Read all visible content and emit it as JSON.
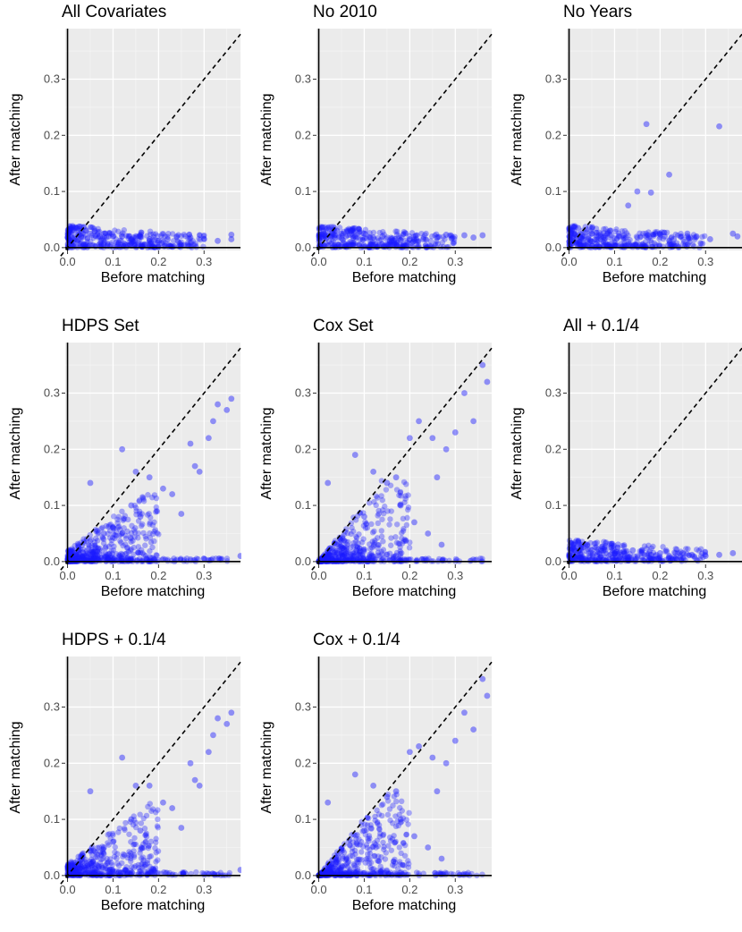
{
  "chart_data": [
    {
      "type": "scatter",
      "title": "All Covariates",
      "xlabel": "Before matching",
      "ylabel": "After matching",
      "xlim": [
        -0.005,
        0.38
      ],
      "ylim": [
        -0.005,
        0.39
      ],
      "xticks": [
        "0.0",
        "0.1",
        "0.2",
        "0.3"
      ],
      "yticks": [
        "0.0",
        "0.1",
        "0.2",
        "0.3"
      ],
      "reference_line": "y = x (dashed)",
      "grid": true,
      "point_color": "#1a1aff",
      "x": [
        0.01,
        0.02,
        0.03,
        0.04,
        0.05,
        0.06,
        0.07,
        0.08,
        0.09,
        0.1,
        0.12,
        0.14,
        0.16,
        0.18,
        0.2,
        0.22,
        0.24,
        0.27,
        0.3,
        0.33,
        0.36,
        0.36
      ],
      "y": [
        0.03,
        0.035,
        0.02,
        0.03,
        0.025,
        0.03,
        0.02,
        0.025,
        0.02,
        0.02,
        0.02,
        0.015,
        0.02,
        0.015,
        0.012,
        0.015,
        0.02,
        0.018,
        0.015,
        0.012,
        0.023,
        0.015
      ]
    },
    {
      "type": "scatter",
      "title": "No 2010",
      "xlabel": "Before matching",
      "ylabel": "After matching",
      "xlim": [
        -0.005,
        0.38
      ],
      "ylim": [
        -0.005,
        0.39
      ],
      "xticks": [
        "0.0",
        "0.1",
        "0.2",
        "0.3"
      ],
      "yticks": [
        "0.0",
        "0.1",
        "0.2",
        "0.3"
      ],
      "reference_line": "y = x (dashed)",
      "grid": true,
      "point_color": "#1a1aff",
      "x": [
        0.01,
        0.02,
        0.03,
        0.04,
        0.05,
        0.06,
        0.07,
        0.08,
        0.1,
        0.12,
        0.14,
        0.16,
        0.18,
        0.2,
        0.23,
        0.26,
        0.28,
        0.32,
        0.34,
        0.36
      ],
      "y": [
        0.03,
        0.035,
        0.025,
        0.03,
        0.025,
        0.02,
        0.03,
        0.02,
        0.025,
        0.018,
        0.02,
        0.015,
        0.013,
        0.015,
        0.015,
        0.018,
        0.023,
        0.022,
        0.018,
        0.022
      ]
    },
    {
      "type": "scatter",
      "title": "No Years",
      "xlabel": "Before matching",
      "ylabel": "After matching",
      "xlim": [
        -0.005,
        0.38
      ],
      "ylim": [
        -0.005,
        0.39
      ],
      "xticks": [
        "0.0",
        "0.1",
        "0.2",
        "0.3"
      ],
      "yticks": [
        "0.0",
        "0.1",
        "0.2",
        "0.3"
      ],
      "reference_line": "y = x (dashed)",
      "grid": true,
      "point_color": "#1a1aff",
      "x": [
        0.01,
        0.02,
        0.03,
        0.05,
        0.07,
        0.09,
        0.11,
        0.13,
        0.17,
        0.22,
        0.33,
        0.15,
        0.18,
        0.21,
        0.23,
        0.26,
        0.28,
        0.31,
        0.36,
        0.37
      ],
      "y": [
        0.03,
        0.035,
        0.02,
        0.025,
        0.02,
        0.03,
        0.02,
        0.075,
        0.22,
        0.13,
        0.216,
        0.1,
        0.098,
        0.02,
        0.015,
        0.025,
        0.02,
        0.015,
        0.025,
        0.02
      ]
    },
    {
      "type": "scatter",
      "title": "HDPS Set",
      "xlabel": "Before matching",
      "ylabel": "After matching",
      "xlim": [
        -0.005,
        0.38
      ],
      "ylim": [
        -0.005,
        0.39
      ],
      "xticks": [
        "0.0",
        "0.1",
        "0.2",
        "0.3"
      ],
      "yticks": [
        "0.0",
        "0.1",
        "0.2",
        "0.3"
      ],
      "reference_line": "y = x (dashed)",
      "grid": true,
      "point_color": "#1a1aff",
      "x": [
        0.05,
        0.12,
        0.15,
        0.18,
        0.21,
        0.23,
        0.27,
        0.28,
        0.29,
        0.31,
        0.32,
        0.33,
        0.35,
        0.36,
        0.38,
        0.14,
        0.16,
        0.25,
        0.1,
        0.08
      ],
      "y": [
        0.14,
        0.2,
        0.16,
        0.15,
        0.13,
        0.12,
        0.21,
        0.17,
        0.16,
        0.22,
        0.25,
        0.28,
        0.27,
        0.29,
        0.01,
        0.1,
        0.08,
        0.085,
        0.06,
        0.05
      ]
    },
    {
      "type": "scatter",
      "title": "Cox Set",
      "xlabel": "Before matching",
      "ylabel": "After matching",
      "xlim": [
        -0.005,
        0.38
      ],
      "ylim": [
        -0.005,
        0.39
      ],
      "xticks": [
        "0.0",
        "0.1",
        "0.2",
        "0.3"
      ],
      "yticks": [
        "0.0",
        "0.1",
        "0.2",
        "0.3"
      ],
      "reference_line": "y = x (dashed)",
      "grid": true,
      "point_color": "#1a1aff",
      "x": [
        0.08,
        0.12,
        0.15,
        0.17,
        0.2,
        0.22,
        0.25,
        0.26,
        0.28,
        0.3,
        0.32,
        0.34,
        0.36,
        0.37,
        0.18,
        0.21,
        0.24,
        0.27,
        0.02,
        0.1
      ],
      "y": [
        0.19,
        0.16,
        0.14,
        0.15,
        0.22,
        0.25,
        0.22,
        0.15,
        0.2,
        0.23,
        0.3,
        0.25,
        0.35,
        0.32,
        0.1,
        0.07,
        0.05,
        0.03,
        0.14,
        0.08
      ]
    },
    {
      "type": "scatter",
      "title": "All + 0.1/4",
      "xlabel": "Before matching",
      "ylabel": "After matching",
      "xlim": [
        -0.005,
        0.38
      ],
      "ylim": [
        -0.005,
        0.39
      ],
      "xticks": [
        "0.0",
        "0.1",
        "0.2",
        "0.3"
      ],
      "yticks": [
        "0.0",
        "0.1",
        "0.2",
        "0.3"
      ],
      "reference_line": "y = x (dashed)",
      "grid": true,
      "point_color": "#1a1aff",
      "x": [
        0.01,
        0.02,
        0.03,
        0.04,
        0.05,
        0.06,
        0.07,
        0.08,
        0.1,
        0.12,
        0.14,
        0.16,
        0.18,
        0.2,
        0.22,
        0.25,
        0.27,
        0.3,
        0.33,
        0.36
      ],
      "y": [
        0.03,
        0.035,
        0.025,
        0.03,
        0.02,
        0.025,
        0.02,
        0.02,
        0.015,
        0.018,
        0.02,
        0.015,
        0.012,
        0.015,
        0.01,
        0.015,
        0.012,
        0.01,
        0.012,
        0.015
      ]
    },
    {
      "type": "scatter",
      "title": "HDPS + 0.1/4",
      "xlabel": "Before matching",
      "ylabel": "After matching",
      "xlim": [
        -0.005,
        0.38
      ],
      "ylim": [
        -0.005,
        0.39
      ],
      "xticks": [
        "0.0",
        "0.1",
        "0.2",
        "0.3"
      ],
      "yticks": [
        "0.0",
        "0.1",
        "0.2",
        "0.3"
      ],
      "reference_line": "y = x (dashed)",
      "grid": true,
      "point_color": "#1a1aff",
      "x": [
        0.05,
        0.12,
        0.15,
        0.18,
        0.21,
        0.23,
        0.27,
        0.28,
        0.29,
        0.31,
        0.32,
        0.33,
        0.35,
        0.36,
        0.38,
        0.14,
        0.16,
        0.25,
        0.1,
        0.08
      ],
      "y": [
        0.15,
        0.21,
        0.16,
        0.16,
        0.13,
        0.12,
        0.2,
        0.17,
        0.16,
        0.22,
        0.25,
        0.28,
        0.27,
        0.29,
        0.01,
        0.1,
        0.08,
        0.085,
        0.06,
        0.05
      ]
    },
    {
      "type": "scatter",
      "title": "Cox + 0.1/4",
      "xlabel": "Before matching",
      "ylabel": "After matching",
      "xlim": [
        -0.005,
        0.38
      ],
      "ylim": [
        -0.005,
        0.39
      ],
      "xticks": [
        "0.0",
        "0.1",
        "0.2",
        "0.3"
      ],
      "yticks": [
        "0.0",
        "0.1",
        "0.2",
        "0.3"
      ],
      "reference_line": "y = x (dashed)",
      "grid": true,
      "point_color": "#1a1aff",
      "x": [
        0.08,
        0.12,
        0.15,
        0.17,
        0.2,
        0.22,
        0.25,
        0.26,
        0.28,
        0.3,
        0.32,
        0.34,
        0.36,
        0.37,
        0.18,
        0.21,
        0.24,
        0.27,
        0.02,
        0.1
      ],
      "y": [
        0.18,
        0.16,
        0.14,
        0.15,
        0.22,
        0.23,
        0.21,
        0.15,
        0.2,
        0.24,
        0.29,
        0.26,
        0.35,
        0.32,
        0.1,
        0.07,
        0.05,
        0.03,
        0.13,
        0.08
      ]
    }
  ]
}
